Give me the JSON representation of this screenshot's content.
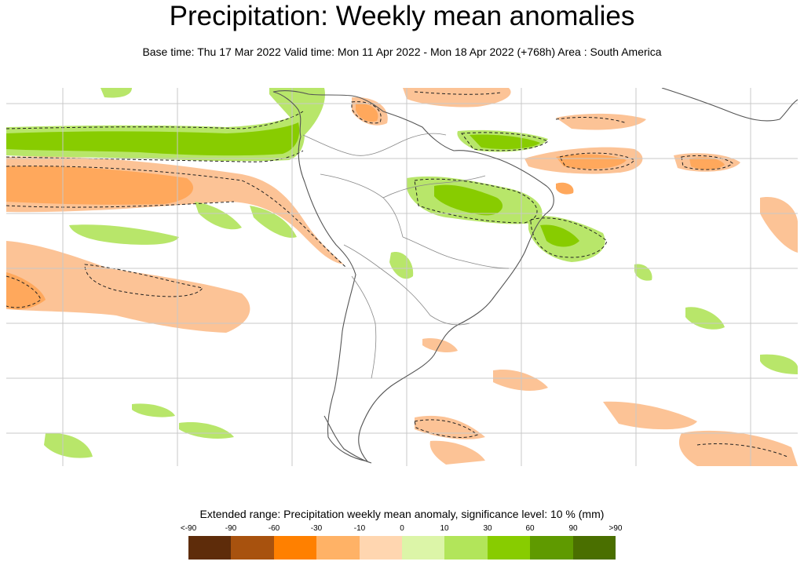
{
  "header": {
    "title": "Precipitation: Weekly mean anomalies",
    "subtitle": "Base time: Thu 17 Mar 2022 Valid time: Mon 11 Apr 2022 - Mon 18 Apr 2022 (+768h) Area : South America"
  },
  "legend": {
    "title": "Extended range: Precipitation weekly mean anomaly, significance level: 10 % (mm)",
    "ticks": [
      "<-90",
      "-90",
      "-60",
      "-30",
      "-10",
      "0",
      "10",
      "30",
      "60",
      "90",
      ">90"
    ],
    "colors": [
      "#5e2c0a",
      "#a8520e",
      "#ff8000",
      "#ffb266",
      "#ffd6b0",
      "#f8fbe8",
      "#dcf5a8",
      "#b2e55a",
      "#88cc00",
      "#5f9a00",
      "#4a6f00"
    ]
  },
  "map": {
    "area": "South America",
    "dry_color": "#fcc396",
    "wet_color": "#a6dd52"
  }
}
